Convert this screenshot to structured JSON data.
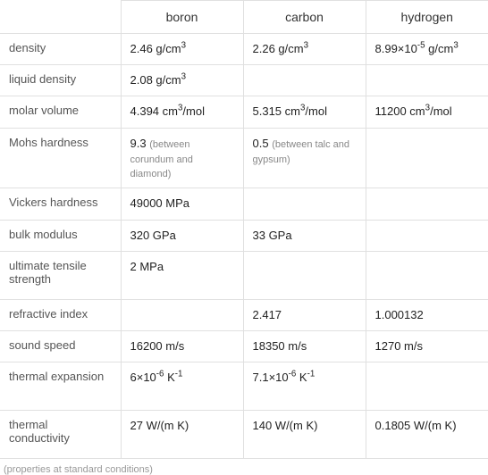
{
  "columns": [
    "",
    "boron",
    "carbon",
    "hydrogen"
  ],
  "rows": [
    {
      "label": "density",
      "cells": [
        {
          "value": "2.46 g/cm",
          "sup": "3"
        },
        {
          "value": "2.26 g/cm",
          "sup": "3"
        },
        {
          "prefix": "8.99×10",
          "sup_mid": "-5",
          "suffix": " g/cm",
          "sup": "3"
        }
      ]
    },
    {
      "label": "liquid density",
      "cells": [
        {
          "value": "2.08 g/cm",
          "sup": "3"
        },
        {
          "value": ""
        },
        {
          "value": ""
        }
      ]
    },
    {
      "label": "molar volume",
      "cells": [
        {
          "value": "4.394 cm",
          "sup": "3",
          "suffix2": "/mol"
        },
        {
          "value": "5.315 cm",
          "sup": "3",
          "suffix2": "/mol"
        },
        {
          "value": "11200 cm",
          "sup": "3",
          "suffix2": "/mol"
        }
      ]
    },
    {
      "label": "Mohs hardness",
      "tall": true,
      "cells": [
        {
          "value": "9.3",
          "note": "(between corundum and diamond)"
        },
        {
          "value": "0.5",
          "note": "(between talc and gypsum)"
        },
        {
          "value": ""
        }
      ]
    },
    {
      "label": "Vickers hardness",
      "cells": [
        {
          "value": "49000 MPa"
        },
        {
          "value": ""
        },
        {
          "value": ""
        }
      ]
    },
    {
      "label": "bulk modulus",
      "cells": [
        {
          "value": "320 GPa"
        },
        {
          "value": "33 GPa"
        },
        {
          "value": ""
        }
      ]
    },
    {
      "label": "ultimate tensile strength",
      "tall": true,
      "cells": [
        {
          "value": "2 MPa"
        },
        {
          "value": ""
        },
        {
          "value": ""
        }
      ]
    },
    {
      "label": "refractive index",
      "cells": [
        {
          "value": ""
        },
        {
          "value": "2.417"
        },
        {
          "value": "1.000132"
        }
      ]
    },
    {
      "label": "sound speed",
      "cells": [
        {
          "value": "16200 m/s"
        },
        {
          "value": "18350 m/s"
        },
        {
          "value": "1270 m/s"
        }
      ]
    },
    {
      "label": "thermal expansion",
      "tall": true,
      "cells": [
        {
          "prefix": "6×10",
          "sup_mid": "-6",
          "suffix": " K",
          "sup": "-1"
        },
        {
          "prefix": "7.1×10",
          "sup_mid": "-6",
          "suffix": " K",
          "sup": "-1"
        },
        {
          "value": ""
        }
      ]
    },
    {
      "label": "thermal conductivity",
      "tall": true,
      "cells": [
        {
          "value": "27 W/(m K)"
        },
        {
          "value": "140 W/(m K)"
        },
        {
          "value": "0.1805 W/(m K)"
        }
      ]
    }
  ],
  "footnote": "(properties at standard conditions)",
  "styles": {
    "border_color": "#e0e0e0",
    "text_color": "#222",
    "label_color": "#555",
    "note_color": "#888",
    "footnote_color": "#999",
    "header_fontsize": 14,
    "cell_fontsize": 13,
    "note_fontsize": 11,
    "background": "#ffffff"
  }
}
